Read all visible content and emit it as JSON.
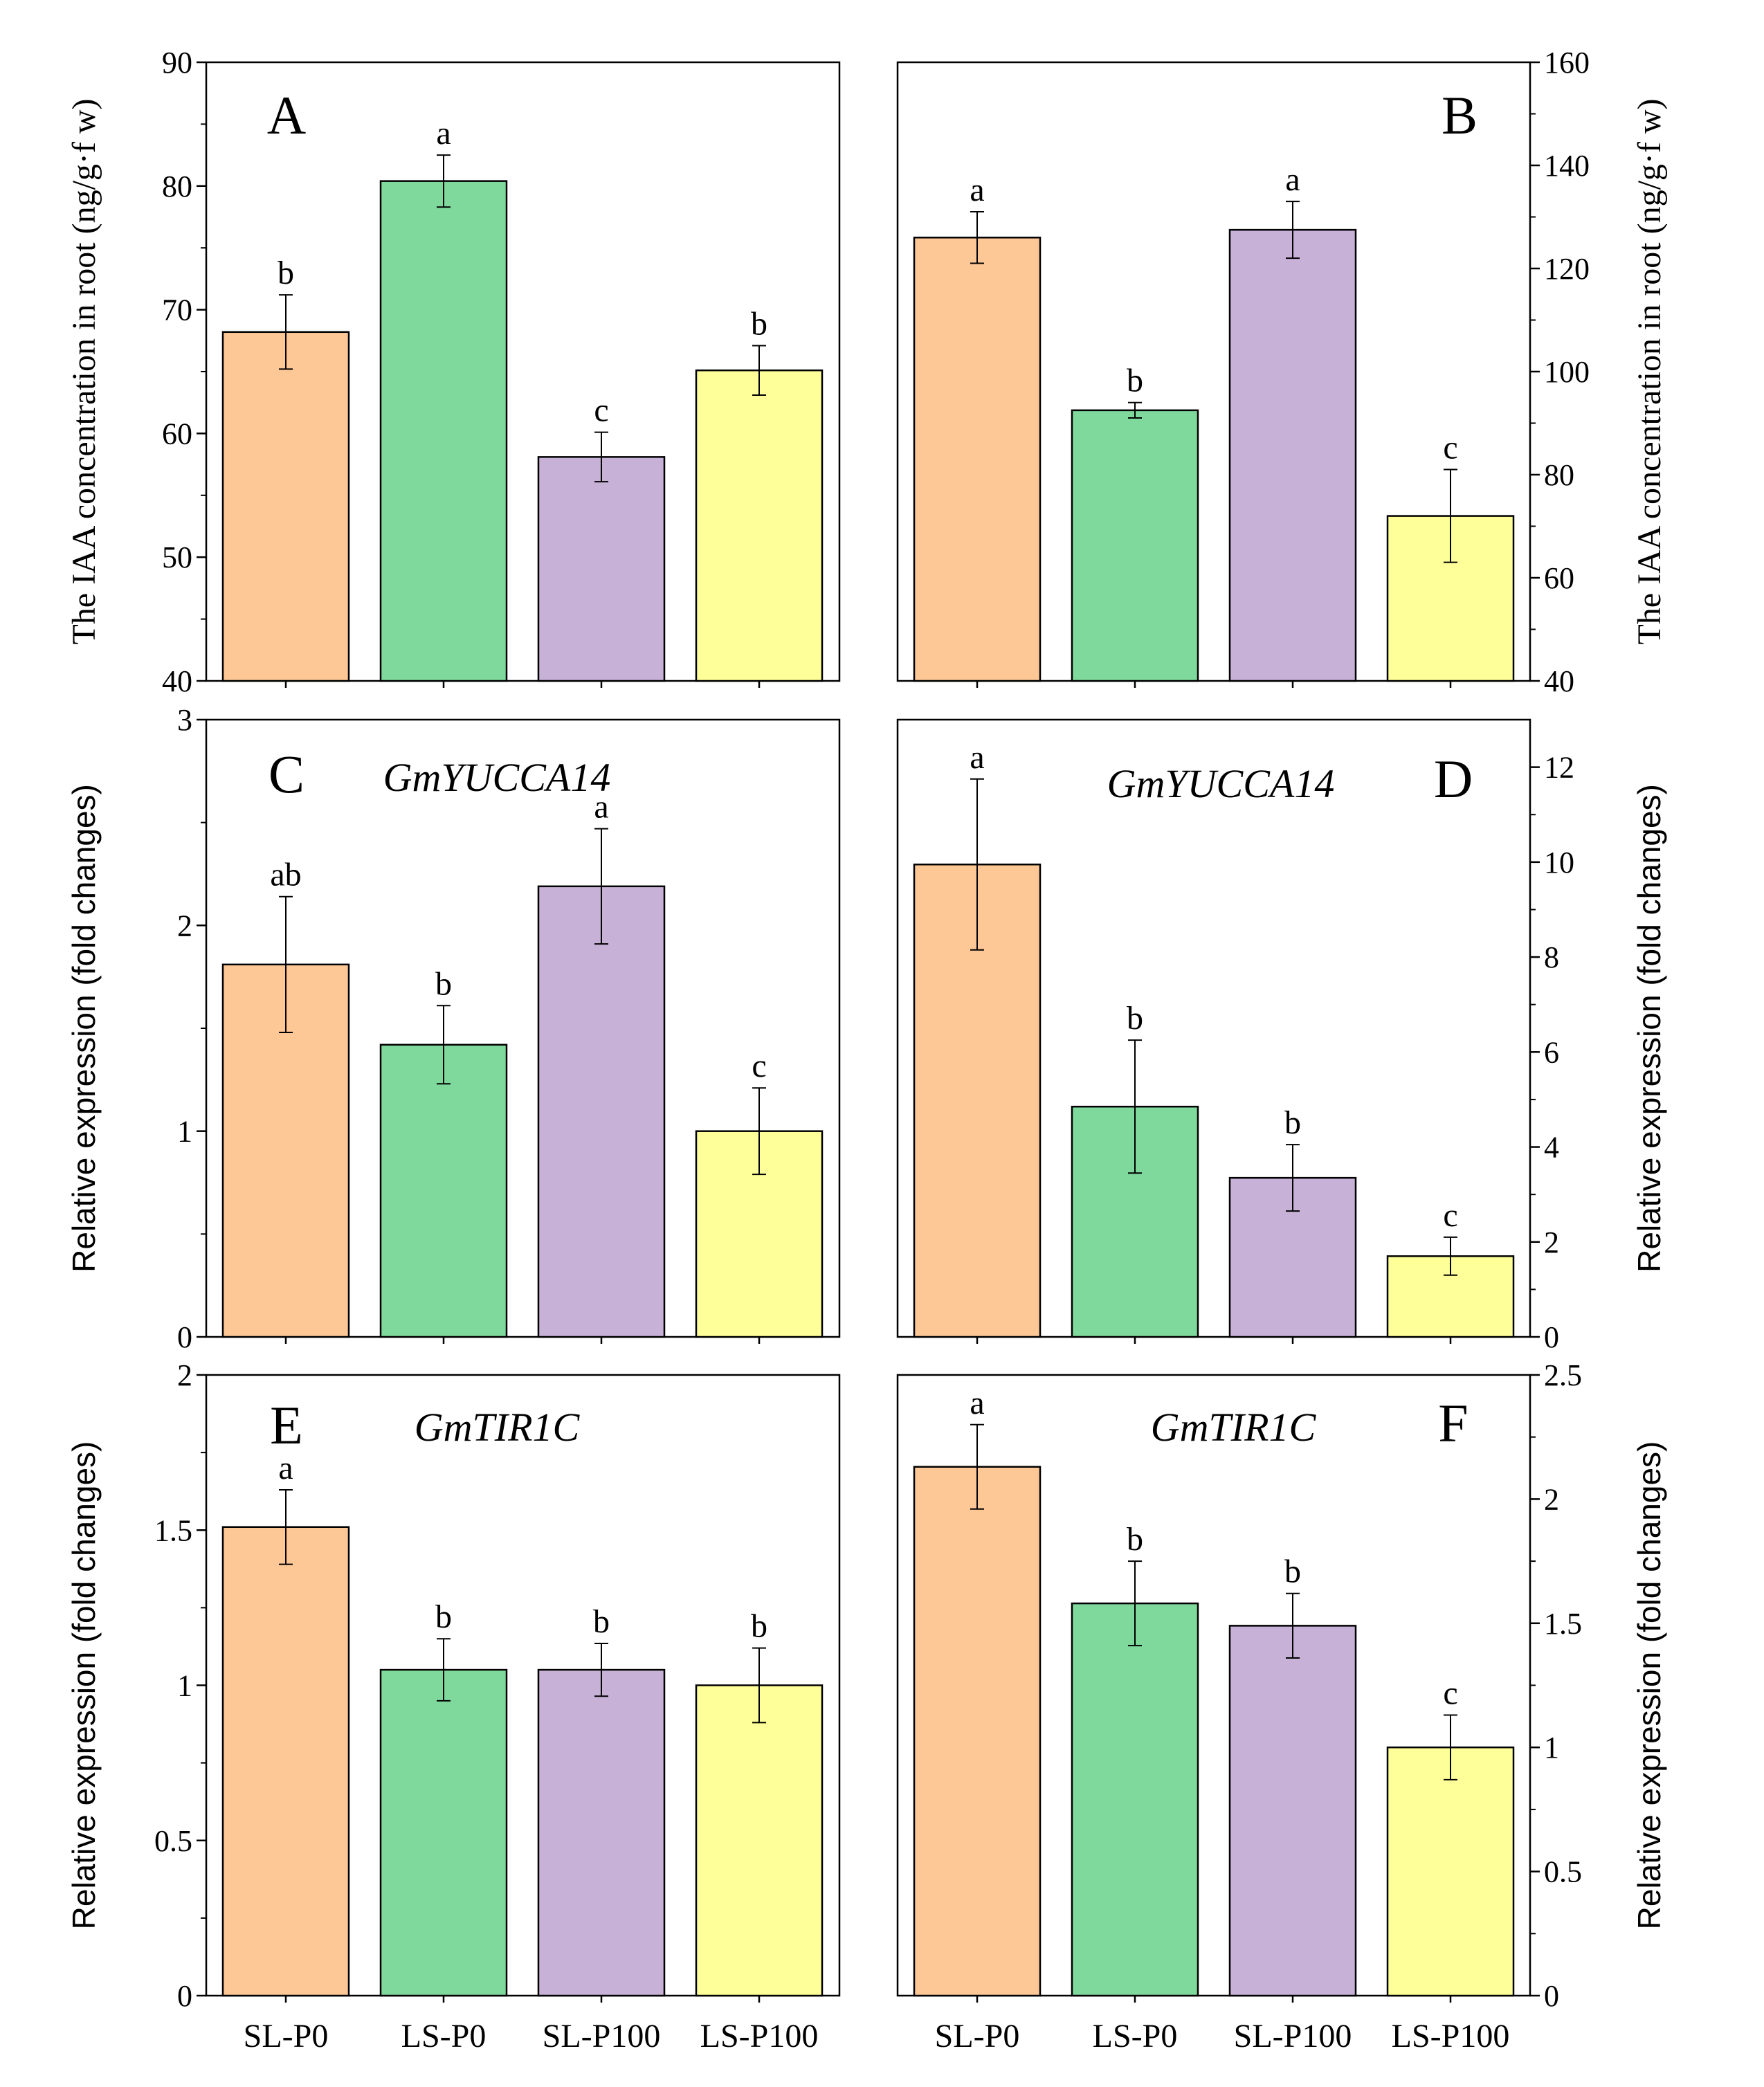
{
  "figure": {
    "categories": [
      "SL-P0",
      "LS-P0",
      "SL-P100",
      "LS-P100"
    ],
    "colors": [
      "#FDC796",
      "#7FD99C",
      "#C8B1D6",
      "#FFFF99"
    ],
    "axis_titles": {
      "iaa": "The IAA concentration in root (ng/g·f w)",
      "expr": "Relative expression (fold changes)"
    }
  },
  "chart_data": [
    {
      "panel": "A",
      "type": "bar",
      "gene": "",
      "categories": [
        "SL-P0",
        "LS-P0",
        "SL-P100",
        "LS-P100"
      ],
      "values": [
        68.2,
        80.4,
        58.1,
        65.1
      ],
      "errors": [
        3.0,
        2.1,
        2.0,
        2.0
      ],
      "letters": [
        "b",
        "a",
        "c",
        "b"
      ],
      "ylabel": "The IAA concentration in root (ng/g·f w)",
      "ylim": [
        40,
        90
      ],
      "yticks": [
        40,
        50,
        60,
        70,
        80,
        90
      ],
      "yticklabels": [
        "40",
        "50",
        "60",
        "70",
        "80",
        "90"
      ],
      "axis_side": "left"
    },
    {
      "panel": "B",
      "type": "bar",
      "gene": "",
      "categories": [
        "SL-P0",
        "LS-P0",
        "SL-P100",
        "LS-P100"
      ],
      "values": [
        126.0,
        92.5,
        127.5,
        72.0
      ],
      "errors": [
        5.0,
        1.5,
        5.5,
        9.0
      ],
      "letters": [
        "a",
        "b",
        "a",
        "c"
      ],
      "ylabel": "The IAA concentration in root (ng/g·f w)",
      "ylim": [
        40,
        160
      ],
      "yticks": [
        40,
        60,
        80,
        100,
        120,
        140,
        160
      ],
      "yticklabels": [
        "40",
        "60",
        "80",
        "100",
        "120",
        "140",
        "160"
      ],
      "axis_side": "right"
    },
    {
      "panel": "C",
      "type": "bar",
      "gene": "GmYUCCA14",
      "categories": [
        "SL-P0",
        "LS-P0",
        "SL-P100",
        "LS-P100"
      ],
      "values": [
        1.81,
        1.42,
        2.19,
        1.0
      ],
      "errors": [
        0.33,
        0.19,
        0.28,
        0.21
      ],
      "letters": [
        "ab",
        "b",
        "a",
        "c"
      ],
      "ylabel": "Relative expression (fold changes)",
      "ylim": [
        0,
        3
      ],
      "yticks": [
        0,
        1,
        2,
        3
      ],
      "yticklabels": [
        "0",
        "1",
        "2",
        "3"
      ],
      "axis_side": "left"
    },
    {
      "panel": "D",
      "type": "bar",
      "gene": "GmYUCCA14",
      "categories": [
        "SL-P0",
        "LS-P0",
        "SL-P100",
        "LS-P100"
      ],
      "values": [
        9.95,
        4.85,
        3.35,
        1.7
      ],
      "errors": [
        1.8,
        1.4,
        0.7,
        0.4
      ],
      "letters": [
        "a",
        "b",
        "b",
        "c"
      ],
      "ylabel": "Relative expression (fold changes)",
      "ylim": [
        0,
        13
      ],
      "yticks": [
        0,
        2,
        4,
        6,
        8,
        10,
        12
      ],
      "yticklabels": [
        "0",
        "2",
        "4",
        "6",
        "8",
        "10",
        "12"
      ],
      "axis_side": "right"
    },
    {
      "panel": "E",
      "type": "bar",
      "gene": "GmTIR1C",
      "categories": [
        "SL-P0",
        "LS-P0",
        "SL-P100",
        "LS-P100"
      ],
      "values": [
        1.51,
        1.05,
        1.05,
        1.0
      ],
      "errors": [
        0.12,
        0.1,
        0.085,
        0.12
      ],
      "letters": [
        "a",
        "b",
        "b",
        "b"
      ],
      "ylabel": "Relative expression (fold changes)",
      "ylim": [
        0,
        2
      ],
      "yticks": [
        0,
        0.5,
        1,
        1.5,
        2
      ],
      "yticklabels": [
        "0",
        "0.5",
        "1",
        "1.5",
        "2"
      ],
      "axis_side": "left"
    },
    {
      "panel": "F",
      "type": "bar",
      "gene": "GmTIR1C",
      "categories": [
        "SL-P0",
        "LS-P0",
        "SL-P100",
        "LS-P100"
      ],
      "values": [
        2.13,
        1.58,
        1.49,
        1.0
      ],
      "errors": [
        0.17,
        0.17,
        0.13,
        0.13
      ],
      "letters": [
        "a",
        "b",
        "b",
        "c"
      ],
      "ylabel": "Relative expression (fold changes)",
      "ylim": [
        0,
        2.5
      ],
      "yticks": [
        0,
        0.5,
        1,
        1.5,
        2,
        2.5
      ],
      "yticklabels": [
        "0",
        "0.5",
        "1",
        "1.5",
        "2",
        "2.5"
      ],
      "axis_side": "right"
    }
  ]
}
